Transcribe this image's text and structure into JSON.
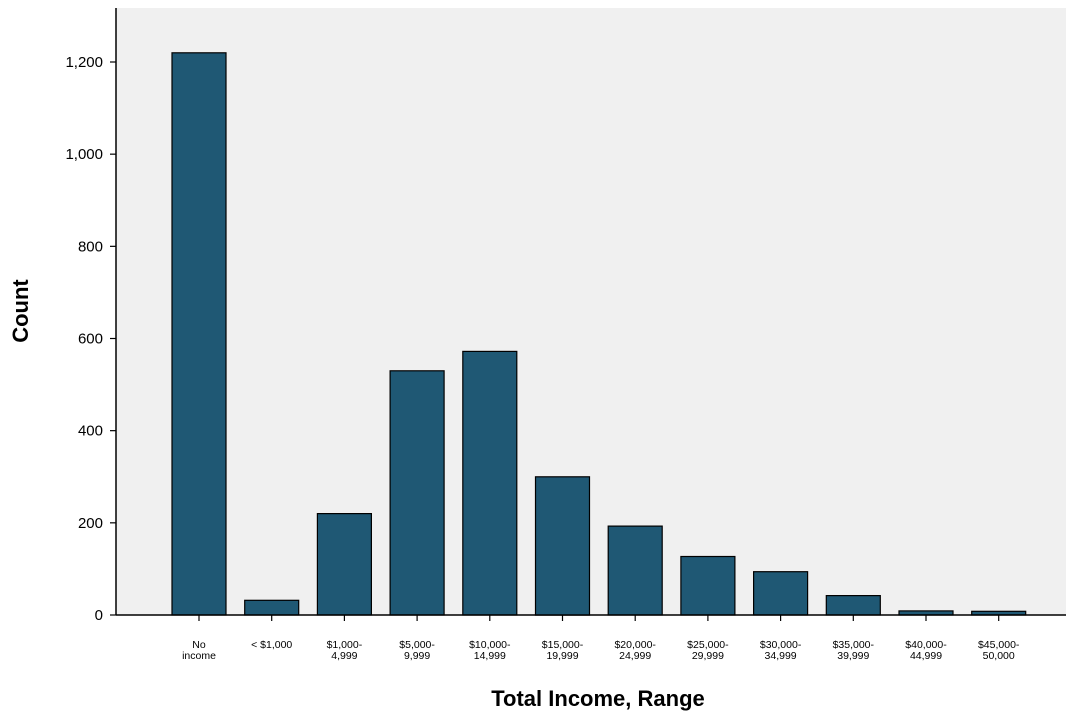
{
  "chart_data": {
    "type": "bar",
    "title": "",
    "xlabel": "Total Income, Range",
    "ylabel": "Count",
    "ylim": [
      0,
      1300
    ],
    "yticks": [
      0,
      200,
      400,
      600,
      800,
      1000,
      1200
    ],
    "ytick_labels": [
      "0",
      "200",
      "400",
      "600",
      "800",
      "1,000",
      "1,200"
    ],
    "grid": false,
    "legend": "none",
    "categories": [
      [
        "No",
        "income"
      ],
      [
        "< $1,000"
      ],
      [
        "$1,000-",
        "4,999"
      ],
      [
        "$5,000-",
        "9,999"
      ],
      [
        "$10,000-",
        "14,999"
      ],
      [
        "$15,000-",
        "19,999"
      ],
      [
        "$20,000-",
        "24,999"
      ],
      [
        "$25,000-",
        "29,999"
      ],
      [
        "$30,000-",
        "34,999"
      ],
      [
        "$35,000-",
        "39,999"
      ],
      [
        "$40,000-",
        "44,999"
      ],
      [
        "$45,000-",
        "50,000"
      ]
    ],
    "values": [
      1220,
      32,
      220,
      530,
      572,
      300,
      193,
      127,
      94,
      42,
      9,
      8
    ],
    "colors": {
      "bar_fill": "#1f5874",
      "bar_stroke": "#000000",
      "plot_background": "#f0f0f0",
      "axis": "#000000"
    }
  }
}
